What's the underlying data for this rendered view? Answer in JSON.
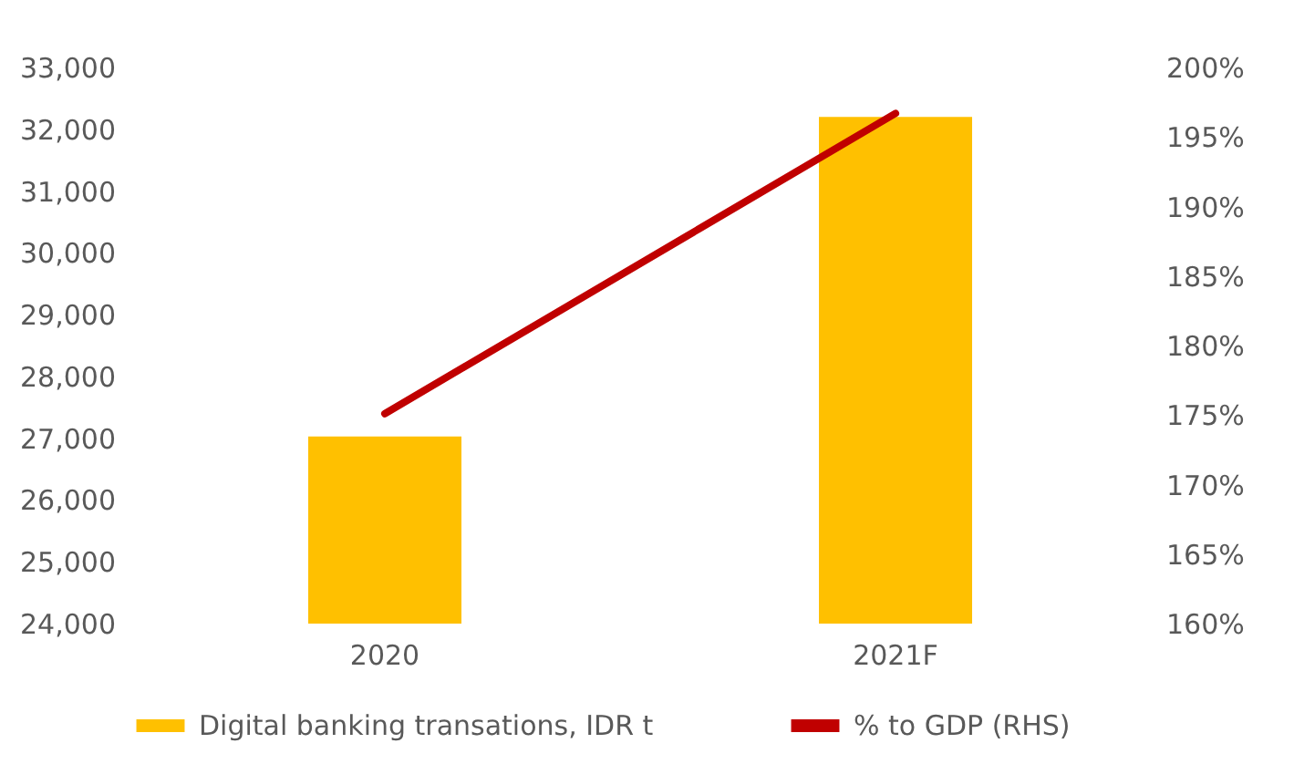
{
  "chart_data": {
    "type": "bar",
    "categories": [
      "2020",
      "2021F"
    ],
    "series": [
      {
        "name": "Digital banking transations, IDR t",
        "color": "#ffc000",
        "values": [
          27030,
          32200
        ]
      },
      {
        "name": "% to GDP (RHS)",
        "type": "line",
        "axis": "y2",
        "color": "#c00000",
        "values": [
          175.1,
          196.7
        ]
      }
    ],
    "ylim": [
      24000,
      33000
    ],
    "yticks": [
      {
        "value": 24000,
        "label": "24,000"
      },
      {
        "value": 25000,
        "label": "25,000"
      },
      {
        "value": 26000,
        "label": "26,000"
      },
      {
        "value": 27000,
        "label": "27,000"
      },
      {
        "value": 28000,
        "label": "28,000"
      },
      {
        "value": 29000,
        "label": "29,000"
      },
      {
        "value": 30000,
        "label": "30,000"
      },
      {
        "value": 31000,
        "label": "31,000"
      },
      {
        "value": 32000,
        "label": "32,000"
      },
      {
        "value": 33000,
        "label": "33,000"
      }
    ],
    "y2lim": [
      160,
      200
    ],
    "y2ticks": [
      {
        "value": 160,
        "label": "160%"
      },
      {
        "value": 165,
        "label": "165%"
      },
      {
        "value": 170,
        "label": "170%"
      },
      {
        "value": 175,
        "label": "175%"
      },
      {
        "value": 180,
        "label": "180%"
      },
      {
        "value": 185,
        "label": "185%"
      },
      {
        "value": 190,
        "label": "190%"
      },
      {
        "value": 195,
        "label": "195%"
      },
      {
        "value": 200,
        "label": "200%"
      }
    ],
    "grid": false,
    "legend": "bottom",
    "marker": "none",
    "line_style": "solid"
  }
}
